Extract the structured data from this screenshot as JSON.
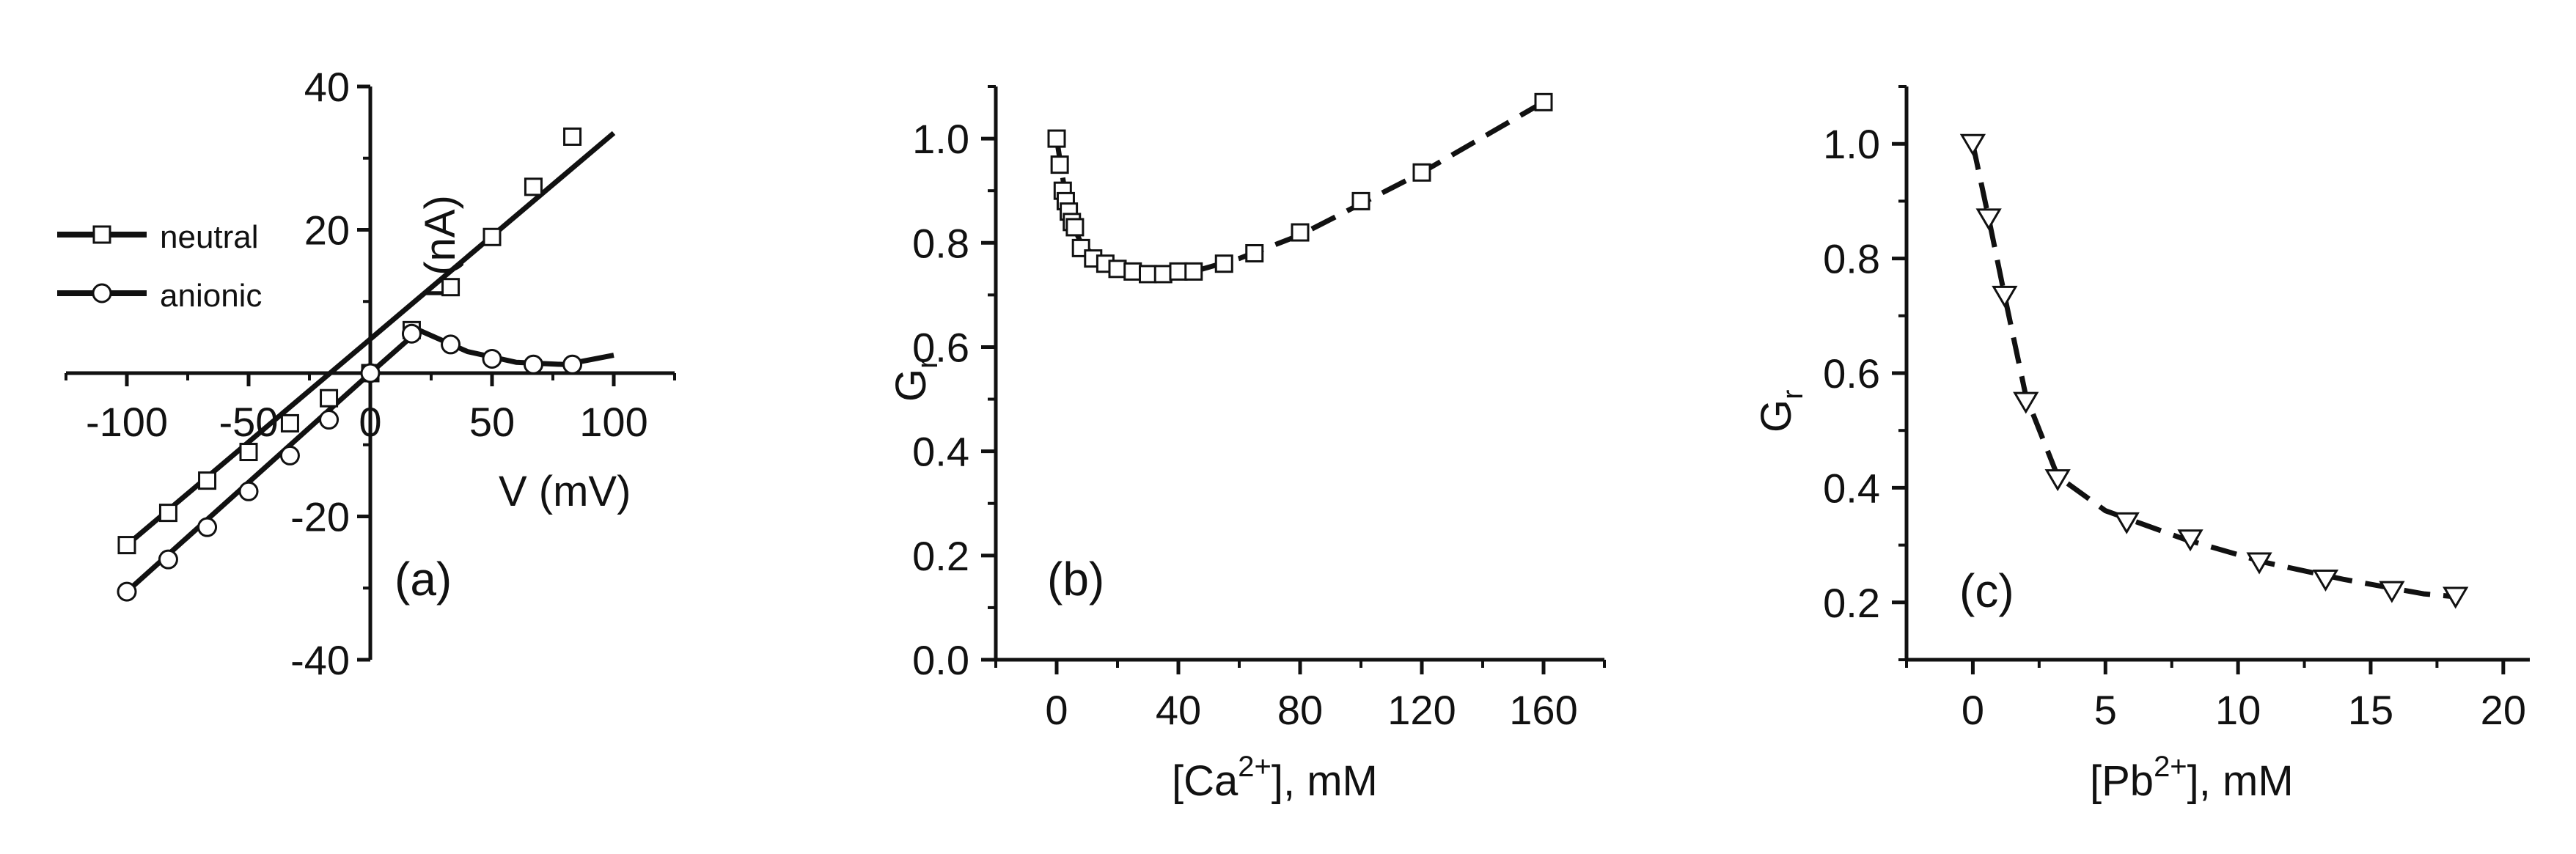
{
  "chart_data": [
    {
      "type": "line",
      "panel_label": "(a)",
      "xlabel": "V (mV)",
      "ylabel": "I (nA)",
      "xlim": [
        -125,
        125
      ],
      "ylim": [
        -40,
        40
      ],
      "xticks": [
        -100,
        -50,
        0,
        50,
        100
      ],
      "xtick_labels": [
        "-100",
        "-50",
        "0",
        "50",
        "100"
      ],
      "yticks": [
        -40,
        -20,
        0,
        20,
        40
      ],
      "ytick_labels": [
        "-40",
        "-20",
        "0",
        "20",
        "40"
      ],
      "legend_position": "left",
      "series": [
        {
          "name": "neutral",
          "marker": "square",
          "x": [
            -100,
            -83,
            -67,
            -50,
            -33,
            -17,
            0,
            17,
            33,
            50,
            67,
            83
          ],
          "y": [
            -24,
            -19.5,
            -15,
            -11,
            -7,
            -3.5,
            0,
            6,
            12,
            19,
            26,
            33
          ]
        },
        {
          "name": "anionic",
          "marker": "circle",
          "x": [
            -100,
            -83,
            -67,
            -50,
            -33,
            -17,
            0,
            17,
            33,
            50,
            67,
            83
          ],
          "y": [
            -30.5,
            -26,
            -21.5,
            -16.5,
            -11.5,
            -6.5,
            0,
            5.5,
            4,
            2,
            1.2,
            1.2
          ]
        }
      ],
      "fit_lines": [
        {
          "x": [
            -100,
            100
          ],
          "y": [
            -24,
            33.5
          ]
        },
        {
          "x": [
            -100,
            0,
            20,
            40,
            60,
            80,
            100
          ],
          "y": [
            -30.5,
            0,
            6,
            3,
            1.5,
            1.2,
            2.5
          ]
        }
      ]
    },
    {
      "type": "scatter",
      "panel_label": "(b)",
      "xlabel_main": "[Ca",
      "xlabel_sup": "2+",
      "xlabel_tail": "], mM",
      "ylabel_main": "G",
      "ylabel_sub": "r",
      "xlim": [
        -20,
        180
      ],
      "ylim": [
        0,
        1.1
      ],
      "xticks": [
        0,
        40,
        80,
        120,
        160
      ],
      "xtick_labels": [
        "0",
        "40",
        "80",
        "120",
        "160"
      ],
      "yticks": [
        0,
        0.2,
        0.4,
        0.6,
        0.8,
        1.0
      ],
      "ytick_labels": [
        "0.0",
        "0.2",
        "0.4",
        "0.6",
        "0.8",
        "1.0"
      ],
      "series": [
        {
          "marker": "square",
          "x": [
            0,
            1,
            2,
            3,
            4,
            5,
            6,
            8,
            12,
            16,
            20,
            25,
            30,
            35,
            40,
            45,
            55,
            65,
            80,
            100,
            120,
            160
          ],
          "y": [
            1.0,
            0.95,
            0.9,
            0.88,
            0.86,
            0.84,
            0.83,
            0.79,
            0.77,
            0.76,
            0.75,
            0.745,
            0.74,
            0.74,
            0.745,
            0.745,
            0.76,
            0.78,
            0.82,
            0.88,
            0.935,
            1.07
          ]
        }
      ],
      "fit_line": {
        "x": [
          0,
          4,
          8,
          15,
          25,
          35,
          45,
          60,
          80,
          100,
          120,
          160
        ],
        "y": [
          1.0,
          0.85,
          0.8,
          0.76,
          0.742,
          0.74,
          0.745,
          0.77,
          0.815,
          0.875,
          0.935,
          1.07
        ]
      }
    },
    {
      "type": "scatter",
      "panel_label": "(c)",
      "xlabel_main": "[Pb",
      "xlabel_sup": "2+",
      "xlabel_tail": "], mM",
      "ylabel_main": "G",
      "ylabel_sub": "r",
      "xlim": [
        -2.5,
        21
      ],
      "ylim": [
        0.1,
        1.1
      ],
      "xticks": [
        0,
        5,
        10,
        15,
        20
      ],
      "xtick_labels": [
        "0",
        "5",
        "10",
        "15",
        "20"
      ],
      "yticks": [
        0.2,
        0.4,
        0.6,
        0.8,
        1.0
      ],
      "ytick_labels": [
        "0.2",
        "0.4",
        "0.6",
        "0.8",
        "1.0"
      ],
      "series": [
        {
          "marker": "triangle-down",
          "x": [
            0,
            0.6,
            1.2,
            2.0,
            3.2,
            5.8,
            8.2,
            10.8,
            13.3,
            15.8,
            18.2
          ],
          "y": [
            1.0,
            0.87,
            0.735,
            0.55,
            0.415,
            0.34,
            0.31,
            0.27,
            0.24,
            0.22,
            0.21
          ]
        }
      ],
      "fit_line": {
        "x": [
          0,
          0.6,
          1.2,
          2.0,
          3.2,
          5,
          8,
          11,
          14,
          17,
          18.2
        ],
        "y": [
          1.0,
          0.87,
          0.735,
          0.56,
          0.42,
          0.36,
          0.31,
          0.27,
          0.24,
          0.215,
          0.21
        ]
      }
    }
  ]
}
